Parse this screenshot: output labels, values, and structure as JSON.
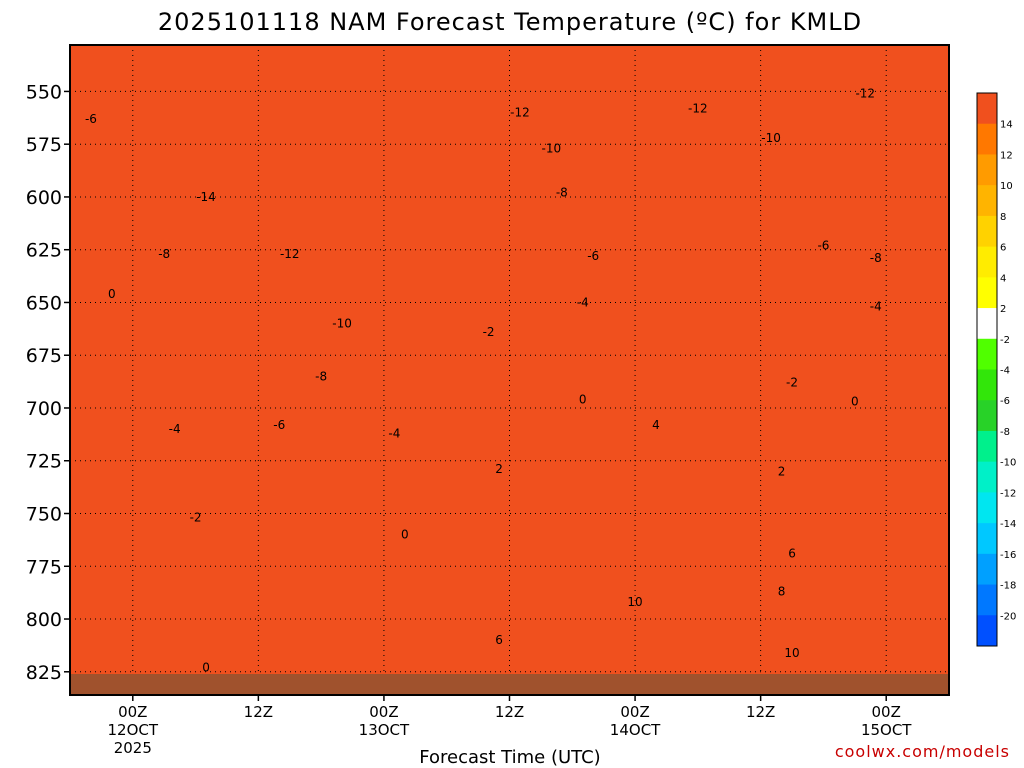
{
  "chart_data": {
    "type": "heatmap",
    "title": "2025101118 NAM Forecast Temperature (ºC) for KMLD",
    "xlabel": "Forecast Time (UTC)",
    "ylabel": "",
    "x_ticks": [
      {
        "hour": 6,
        "label": "00Z",
        "sub": "12OCT",
        "sub2": "2025"
      },
      {
        "hour": 18,
        "label": "12Z",
        "sub": "",
        "sub2": ""
      },
      {
        "hour": 30,
        "label": "00Z",
        "sub": "13OCT",
        "sub2": ""
      },
      {
        "hour": 42,
        "label": "12Z",
        "sub": "",
        "sub2": ""
      },
      {
        "hour": 54,
        "label": "00Z",
        "sub": "14OCT",
        "sub2": ""
      },
      {
        "hour": 66,
        "label": "12Z",
        "sub": "",
        "sub2": ""
      },
      {
        "hour": 78,
        "label": "00Z",
        "sub": "15OCT",
        "sub2": ""
      }
    ],
    "x_range_hours": [
      0,
      84
    ],
    "y_ticks": [
      550,
      575,
      600,
      625,
      650,
      675,
      700,
      725,
      750,
      775,
      800,
      825
    ],
    "y_range_hPa": [
      528,
      836
    ],
    "grid": true,
    "colorbar": {
      "placement": "right",
      "boundaries": [
        16,
        14,
        12,
        10,
        8,
        6,
        4,
        2,
        -2,
        -4,
        -6,
        -8,
        -10,
        -12,
        -14,
        -16,
        -18,
        -20,
        -22
      ],
      "labels": [
        "14",
        "12",
        "10",
        "8",
        "6",
        "4",
        "2",
        "-2",
        "-4",
        "-6",
        "-8",
        "-10",
        "-12",
        "-14",
        "-16",
        "-18",
        "-20"
      ],
      "colors": [
        "#f0501e",
        "#ff7800",
        "#ff9b00",
        "#ffb400",
        "#ffd200",
        "#ffec00",
        "#ffff00",
        "#ffffff",
        "#50ff00",
        "#32e60a",
        "#28d228",
        "#00f08c",
        "#00f0c8",
        "#00e6f0",
        "#00c8ff",
        "#00a0ff",
        "#0078ff",
        "#0050ff"
      ]
    },
    "contour_labels": [
      {
        "text": "-6",
        "hour": 2,
        "hPa": 563
      },
      {
        "text": "-14",
        "hour": 13,
        "hPa": 600
      },
      {
        "text": "-8",
        "hour": 9,
        "hPa": 627
      },
      {
        "text": "-12",
        "hour": 21,
        "hPa": 627
      },
      {
        "text": "-10",
        "hour": 26,
        "hPa": 660
      },
      {
        "text": "-8",
        "hour": 24,
        "hPa": 685
      },
      {
        "text": "-6",
        "hour": 20,
        "hPa": 708
      },
      {
        "text": "-4",
        "hour": 10,
        "hPa": 710
      },
      {
        "text": "-2",
        "hour": 12,
        "hPa": 752
      },
      {
        "text": "0",
        "hour": 4,
        "hPa": 646
      },
      {
        "text": "0",
        "hour": 13,
        "hPa": 823
      },
      {
        "text": "-4",
        "hour": 31,
        "hPa": 712
      },
      {
        "text": "0",
        "hour": 32,
        "hPa": 760
      },
      {
        "text": "-12",
        "hour": 43,
        "hPa": 560
      },
      {
        "text": "-10",
        "hour": 46,
        "hPa": 577
      },
      {
        "text": "-8",
        "hour": 47,
        "hPa": 598
      },
      {
        "text": "-6",
        "hour": 50,
        "hPa": 628
      },
      {
        "text": "-4",
        "hour": 49,
        "hPa": 650
      },
      {
        "text": "-2",
        "hour": 40,
        "hPa": 664
      },
      {
        "text": "0",
        "hour": 49,
        "hPa": 696
      },
      {
        "text": "2",
        "hour": 41,
        "hPa": 729
      },
      {
        "text": "4",
        "hour": 56,
        "hPa": 708
      },
      {
        "text": "6",
        "hour": 41,
        "hPa": 810
      },
      {
        "text": "10",
        "hour": 54,
        "hPa": 792
      },
      {
        "text": "10",
        "hour": 69,
        "hPa": 816
      },
      {
        "text": "-12",
        "hour": 60,
        "hPa": 558
      },
      {
        "text": "-10",
        "hour": 67,
        "hPa": 572
      },
      {
        "text": "-12",
        "hour": 76,
        "hPa": 551
      },
      {
        "text": "-6",
        "hour": 72,
        "hPa": 623
      },
      {
        "text": "-8",
        "hour": 77,
        "hPa": 629
      },
      {
        "text": "-4",
        "hour": 77,
        "hPa": 652
      },
      {
        "text": "-2",
        "hour": 69,
        "hPa": 688
      },
      {
        "text": "0",
        "hour": 75,
        "hPa": 697
      },
      {
        "text": "2",
        "hour": 68,
        "hPa": 730
      },
      {
        "text": "6",
        "hour": 69,
        "hPa": 769
      },
      {
        "text": "8",
        "hour": 68,
        "hPa": 787
      }
    ]
  },
  "credit": "coolwx.com/models"
}
